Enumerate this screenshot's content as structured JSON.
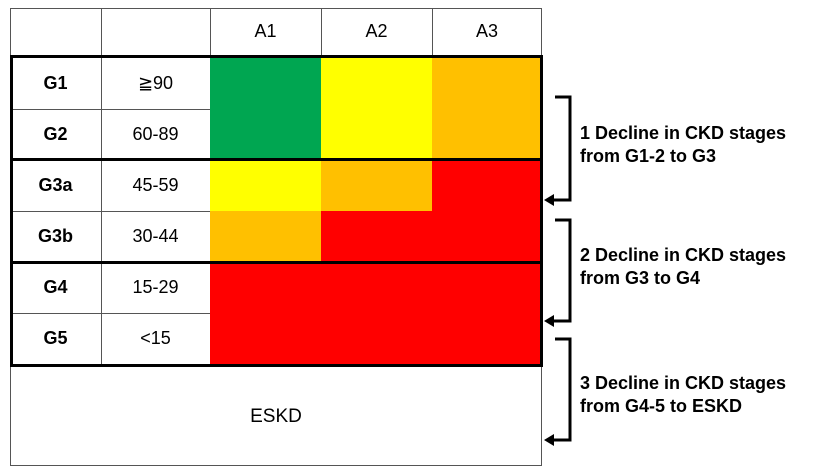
{
  "colors": {
    "green": "#00a651",
    "yellow": "#ffff00",
    "orange": "#ffc000",
    "red": "#ff0000"
  },
  "header": {
    "cols": [
      "A1",
      "A2",
      "A3"
    ]
  },
  "rows": [
    {
      "stage": "G1",
      "gfr": "≧90",
      "colors": [
        "green",
        "yellow",
        "orange"
      ]
    },
    {
      "stage": "G2",
      "gfr": "60-89",
      "colors": [
        "green",
        "yellow",
        "orange"
      ]
    },
    {
      "stage": "G3a",
      "gfr": "45-59",
      "colors": [
        "yellow",
        "orange",
        "red"
      ]
    },
    {
      "stage": "G3b",
      "gfr": "30-44",
      "colors": [
        "orange",
        "red",
        "red"
      ]
    },
    {
      "stage": "G4",
      "gfr": "15-29",
      "colors": [
        "red",
        "red",
        "red"
      ]
    },
    {
      "stage": "G5",
      "gfr": "<15",
      "colors": [
        "red",
        "red",
        "red"
      ]
    }
  ],
  "eskd_label": "ESKD",
  "brackets": [
    {
      "line1": "1 Decline in CKD stages",
      "line2": "from G1-2 to G3"
    },
    {
      "line1": "2 Decline in CKD stages",
      "line2": "from G3 to G4"
    },
    {
      "line1": "3 Decline in CKD stages",
      "line2": "from G4-5 to ESKD"
    }
  ]
}
